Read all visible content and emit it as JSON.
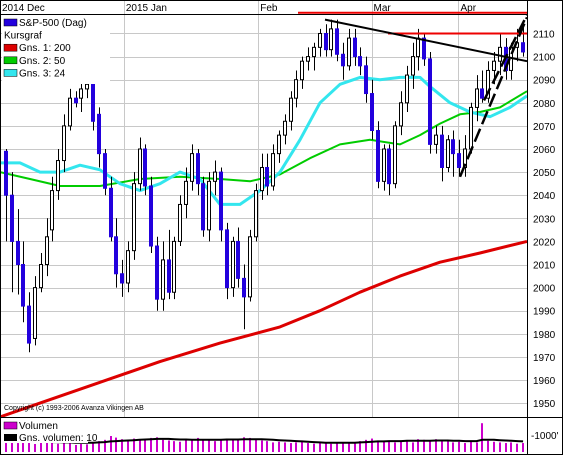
{
  "chart_data": {
    "type": "candlestick",
    "symbol_label": "S&P-500 (Dag)",
    "price_panel_label": "Kursgraf",
    "copyright": "Copyright (c) 1993-2006 Avanza Vikingen AB",
    "volume_label": "Volumen",
    "volume_ma_label": "Gns. volumen: 10",
    "volume_unit_label": "1000'",
    "x_tick_labels": [
      "2014 Dec",
      "2015 Jan",
      "Feb",
      "Mar",
      "Apr"
    ],
    "y_tick_labels": [
      "1950",
      "1960",
      "1970",
      "1980",
      "1990",
      "2000",
      "2010",
      "2020",
      "2030",
      "2040",
      "2050",
      "2060",
      "2070",
      "2080",
      "2090",
      "2100",
      "2110"
    ],
    "ylim": [
      1944,
      2118
    ],
    "grid": true,
    "legend_position": "top-left",
    "moving_averages": [
      {
        "name": "Gns. 1: 200",
        "period": 200,
        "color": "#dd0000"
      },
      {
        "name": "Gns. 2: 50",
        "period": 50,
        "color": "#00cc00"
      },
      {
        "name": "Gns. 3: 24",
        "period": 24,
        "color": "#33e6ee"
      }
    ],
    "series_colors": {
      "up": "#ffffff",
      "down": "#2200dd",
      "wick": "#000000",
      "volume": "#cc00cc",
      "volume_ma": "#000000"
    },
    "resistance_levels": [
      2119,
      2110
    ],
    "resistance_color": "#ee0000",
    "trendline_color": "#000000",
    "ma200_points": [
      [
        0,
        1944
      ],
      [
        40,
        1950
      ],
      [
        100,
        1959
      ],
      [
        160,
        1968
      ],
      [
        220,
        1976
      ],
      [
        280,
        1983
      ],
      [
        320,
        1990
      ],
      [
        360,
        1998
      ],
      [
        400,
        2005
      ],
      [
        440,
        2011
      ],
      [
        480,
        2015
      ],
      [
        527,
        2020
      ]
    ],
    "ma50_points": [
      [
        0,
        2050
      ],
      [
        30,
        2047
      ],
      [
        60,
        2044
      ],
      [
        100,
        2044
      ],
      [
        140,
        2047
      ],
      [
        180,
        2048
      ],
      [
        220,
        2047
      ],
      [
        250,
        2046
      ],
      [
        280,
        2049
      ],
      [
        310,
        2056
      ],
      [
        340,
        2062
      ],
      [
        370,
        2064
      ],
      [
        400,
        2062
      ],
      [
        420,
        2066
      ],
      [
        440,
        2071
      ],
      [
        460,
        2075
      ],
      [
        480,
        2076
      ],
      [
        500,
        2078
      ],
      [
        527,
        2085
      ]
    ],
    "ma24_points": [
      [
        0,
        2054
      ],
      [
        20,
        2054
      ],
      [
        40,
        2050
      ],
      [
        60,
        2050
      ],
      [
        80,
        2053
      ],
      [
        100,
        2051
      ],
      [
        120,
        2045
      ],
      [
        140,
        2042
      ],
      [
        160,
        2045
      ],
      [
        180,
        2050
      ],
      [
        200,
        2047
      ],
      [
        220,
        2036
      ],
      [
        240,
        2036
      ],
      [
        260,
        2042
      ],
      [
        280,
        2050
      ],
      [
        300,
        2064
      ],
      [
        320,
        2080
      ],
      [
        340,
        2088
      ],
      [
        360,
        2091
      ],
      [
        380,
        2090
      ],
      [
        400,
        2091
      ],
      [
        420,
        2091
      ],
      [
        430,
        2087
      ],
      [
        450,
        2080
      ],
      [
        470,
        2076
      ],
      [
        490,
        2074
      ],
      [
        510,
        2078
      ],
      [
        527,
        2083
      ]
    ],
    "candles": [
      {
        "o": 2059,
        "h": 2060,
        "l": 2020,
        "c": 2040
      },
      {
        "o": 2040,
        "h": 2050,
        "l": 1998,
        "c": 2020
      },
      {
        "o": 2020,
        "h": 2034,
        "l": 1997,
        "c": 2010
      },
      {
        "o": 2010,
        "h": 2020,
        "l": 1985,
        "c": 1992
      },
      {
        "o": 1992,
        "h": 1998,
        "l": 1972,
        "c": 1976
      },
      {
        "o": 1978,
        "h": 2005,
        "l": 1975,
        "c": 2000
      },
      {
        "o": 2000,
        "h": 2015,
        "l": 1998,
        "c": 2010
      },
      {
        "o": 2010,
        "h": 2030,
        "l": 2005,
        "c": 2022
      },
      {
        "o": 2025,
        "h": 2048,
        "l": 2020,
        "c": 2042
      },
      {
        "o": 2042,
        "h": 2060,
        "l": 2038,
        "c": 2055
      },
      {
        "o": 2055,
        "h": 2075,
        "l": 2050,
        "c": 2070
      },
      {
        "o": 2070,
        "h": 2086,
        "l": 2068,
        "c": 2082
      },
      {
        "o": 2082,
        "h": 2085,
        "l": 2078,
        "c": 2080
      },
      {
        "o": 2082,
        "h": 2090,
        "l": 2076,
        "c": 2086
      },
      {
        "o": 2086,
        "h": 2093,
        "l": 2082,
        "c": 2088
      },
      {
        "o": 2088,
        "h": 2090,
        "l": 2068,
        "c": 2072
      },
      {
        "o": 2075,
        "h": 2078,
        "l": 2052,
        "c": 2058
      },
      {
        "o": 2058,
        "h": 2060,
        "l": 2040,
        "c": 2043
      },
      {
        "o": 2043,
        "h": 2048,
        "l": 2020,
        "c": 2022
      },
      {
        "o": 2022,
        "h": 2030,
        "l": 2000,
        "c": 2006
      },
      {
        "o": 2006,
        "h": 2012,
        "l": 1996,
        "c": 2002
      },
      {
        "o": 2002,
        "h": 2020,
        "l": 1998,
        "c": 2016
      },
      {
        "o": 2016,
        "h": 2050,
        "l": 2012,
        "c": 2045
      },
      {
        "o": 2045,
        "h": 2065,
        "l": 2042,
        "c": 2060
      },
      {
        "o": 2060,
        "h": 2062,
        "l": 2040,
        "c": 2044
      },
      {
        "o": 2044,
        "h": 2048,
        "l": 2015,
        "c": 2018
      },
      {
        "o": 2018,
        "h": 2022,
        "l": 1990,
        "c": 1995
      },
      {
        "o": 1995,
        "h": 2020,
        "l": 1990,
        "c": 2012
      },
      {
        "o": 2012,
        "h": 2025,
        "l": 1995,
        "c": 1998
      },
      {
        "o": 1998,
        "h": 2022,
        "l": 1995,
        "c": 2020
      },
      {
        "o": 2020,
        "h": 2040,
        "l": 2018,
        "c": 2036
      },
      {
        "o": 2036,
        "h": 2052,
        "l": 2030,
        "c": 2046
      },
      {
        "o": 2046,
        "h": 2062,
        "l": 2042,
        "c": 2058
      },
      {
        "o": 2058,
        "h": 2060,
        "l": 2040,
        "c": 2045
      },
      {
        "o": 2045,
        "h": 2048,
        "l": 2022,
        "c": 2025
      },
      {
        "o": 2025,
        "h": 2050,
        "l": 2020,
        "c": 2046
      },
      {
        "o": 2046,
        "h": 2055,
        "l": 2040,
        "c": 2050
      },
      {
        "o": 2050,
        "h": 2052,
        "l": 2020,
        "c": 2025
      },
      {
        "o": 2025,
        "h": 2028,
        "l": 1995,
        "c": 2000
      },
      {
        "o": 2000,
        "h": 2022,
        "l": 1996,
        "c": 2020
      },
      {
        "o": 2020,
        "h": 2026,
        "l": 2000,
        "c": 2004
      },
      {
        "o": 2004,
        "h": 2010,
        "l": 1982,
        "c": 1996
      },
      {
        "o": 1996,
        "h": 2025,
        "l": 1994,
        "c": 2022
      },
      {
        "o": 2022,
        "h": 2045,
        "l": 2020,
        "c": 2042
      },
      {
        "o": 2042,
        "h": 2058,
        "l": 2038,
        "c": 2052
      },
      {
        "o": 2052,
        "h": 2058,
        "l": 2040,
        "c": 2044
      },
      {
        "o": 2044,
        "h": 2062,
        "l": 2042,
        "c": 2058
      },
      {
        "o": 2058,
        "h": 2068,
        "l": 2054,
        "c": 2066
      },
      {
        "o": 2066,
        "h": 2075,
        "l": 2062,
        "c": 2072
      },
      {
        "o": 2072,
        "h": 2085,
        "l": 2068,
        "c": 2082
      },
      {
        "o": 2082,
        "h": 2094,
        "l": 2078,
        "c": 2090
      },
      {
        "o": 2090,
        "h": 2100,
        "l": 2086,
        "c": 2098
      },
      {
        "o": 2098,
        "h": 2104,
        "l": 2094,
        "c": 2100
      },
      {
        "o": 2100,
        "h": 2106,
        "l": 2094,
        "c": 2104
      },
      {
        "o": 2104,
        "h": 2112,
        "l": 2100,
        "c": 2110
      },
      {
        "o": 2110,
        "h": 2114,
        "l": 2100,
        "c": 2103
      },
      {
        "o": 2103,
        "h": 2116,
        "l": 2100,
        "c": 2112
      },
      {
        "o": 2112,
        "h": 2116,
        "l": 2098,
        "c": 2101
      },
      {
        "o": 2101,
        "h": 2106,
        "l": 2090,
        "c": 2096
      },
      {
        "o": 2096,
        "h": 2112,
        "l": 2094,
        "c": 2108
      },
      {
        "o": 2108,
        "h": 2112,
        "l": 2096,
        "c": 2100
      },
      {
        "o": 2100,
        "h": 2104,
        "l": 2092,
        "c": 2096
      },
      {
        "o": 2096,
        "h": 2100,
        "l": 2080,
        "c": 2084
      },
      {
        "o": 2084,
        "h": 2090,
        "l": 2064,
        "c": 2068
      },
      {
        "o": 2068,
        "h": 2072,
        "l": 2043,
        "c": 2046
      },
      {
        "o": 2046,
        "h": 2062,
        "l": 2042,
        "c": 2060
      },
      {
        "o": 2060,
        "h": 2062,
        "l": 2040,
        "c": 2045
      },
      {
        "o": 2045,
        "h": 2072,
        "l": 2043,
        "c": 2070
      },
      {
        "o": 2070,
        "h": 2085,
        "l": 2066,
        "c": 2080
      },
      {
        "o": 2080,
        "h": 2096,
        "l": 2076,
        "c": 2092
      },
      {
        "o": 2092,
        "h": 2106,
        "l": 2086,
        "c": 2100
      },
      {
        "o": 2100,
        "h": 2112,
        "l": 2094,
        "c": 2108
      },
      {
        "o": 2108,
        "h": 2110,
        "l": 2096,
        "c": 2099
      },
      {
        "o": 2099,
        "h": 2102,
        "l": 2058,
        "c": 2062
      },
      {
        "o": 2062,
        "h": 2070,
        "l": 2058,
        "c": 2066
      },
      {
        "o": 2066,
        "h": 2070,
        "l": 2046,
        "c": 2052
      },
      {
        "o": 2052,
        "h": 2066,
        "l": 2050,
        "c": 2064
      },
      {
        "o": 2064,
        "h": 2068,
        "l": 2048,
        "c": 2058
      },
      {
        "o": 2058,
        "h": 2064,
        "l": 2048,
        "c": 2052
      },
      {
        "o": 2052,
        "h": 2066,
        "l": 2048,
        "c": 2060
      },
      {
        "o": 2060,
        "h": 2080,
        "l": 2058,
        "c": 2078
      },
      {
        "o": 2078,
        "h": 2092,
        "l": 2072,
        "c": 2086
      },
      {
        "o": 2086,
        "h": 2094,
        "l": 2080,
        "c": 2082
      },
      {
        "o": 2082,
        "h": 2098,
        "l": 2080,
        "c": 2094
      },
      {
        "o": 2094,
        "h": 2102,
        "l": 2088,
        "c": 2098
      },
      {
        "o": 2098,
        "h": 2110,
        "l": 2092,
        "c": 2104
      },
      {
        "o": 2104,
        "h": 2108,
        "l": 2090,
        "c": 2094
      },
      {
        "o": 2094,
        "h": 2106,
        "l": 2090,
        "c": 2104
      },
      {
        "o": 2104,
        "h": 2112,
        "l": 2098,
        "c": 2106
      },
      {
        "o": 2106,
        "h": 2114,
        "l": 2100,
        "c": 2102
      }
    ],
    "volumes": [
      0.32,
      0.45,
      0.28,
      0.3,
      0.38,
      0.25,
      0.3,
      0.42,
      0.3,
      0.26,
      0.28,
      0.3,
      0.22,
      0.25,
      0.24,
      0.3,
      0.34,
      0.38,
      0.5,
      0.45,
      0.4,
      0.36,
      0.42,
      0.38,
      0.4,
      0.44,
      0.46,
      0.38,
      0.36,
      0.34,
      0.32,
      0.36,
      0.4,
      0.44,
      0.4,
      0.36,
      0.34,
      0.38,
      0.42,
      0.4,
      0.38,
      0.46,
      0.44,
      0.4,
      0.36,
      0.34,
      0.3,
      0.32,
      0.3,
      0.28,
      0.3,
      0.32,
      0.28,
      0.26,
      0.3,
      0.28,
      0.26,
      0.28,
      0.3,
      0.28,
      0.3,
      0.34,
      0.38,
      0.42,
      0.36,
      0.34,
      0.32,
      0.3,
      0.34,
      0.36,
      0.3,
      0.4,
      0.38,
      0.36,
      0.4,
      0.36,
      0.34,
      0.3,
      0.32,
      0.28,
      0.34,
      0.3,
      0.9,
      0.35,
      0.32,
      0.3,
      0.28,
      0.3,
      0.26,
      0.28
    ],
    "volume_ma": [
      0.34,
      0.34,
      0.33,
      0.33,
      0.33,
      0.32,
      0.32,
      0.32,
      0.31,
      0.31,
      0.3,
      0.3,
      0.29,
      0.29,
      0.29,
      0.29,
      0.3,
      0.31,
      0.33,
      0.34,
      0.35,
      0.36,
      0.37,
      0.38,
      0.39,
      0.4,
      0.41,
      0.41,
      0.41,
      0.4,
      0.39,
      0.39,
      0.38,
      0.38,
      0.38,
      0.38,
      0.38,
      0.38,
      0.39,
      0.39,
      0.39,
      0.4,
      0.4,
      0.4,
      0.4,
      0.39,
      0.38,
      0.37,
      0.36,
      0.35,
      0.34,
      0.33,
      0.32,
      0.31,
      0.3,
      0.29,
      0.29,
      0.29,
      0.29,
      0.29,
      0.29,
      0.3,
      0.31,
      0.32,
      0.33,
      0.33,
      0.34,
      0.34,
      0.34,
      0.35,
      0.35,
      0.35,
      0.35,
      0.35,
      0.36,
      0.36,
      0.36,
      0.35,
      0.35,
      0.34,
      0.34,
      0.34,
      0.38,
      0.38,
      0.38,
      0.37,
      0.36,
      0.35,
      0.34,
      0.33
    ]
  }
}
